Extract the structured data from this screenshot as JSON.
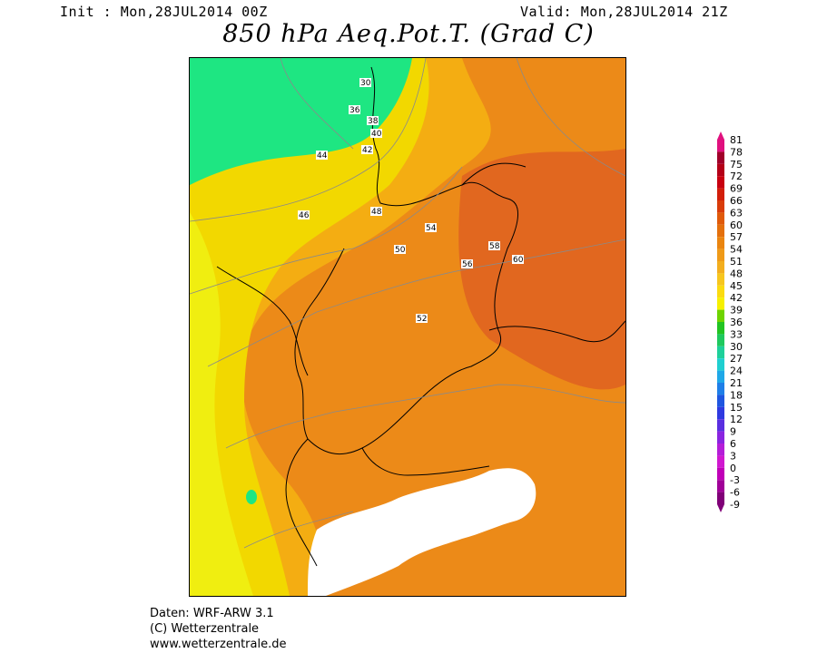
{
  "header": {
    "init": "Init : Mon,28JUL2014 00Z",
    "valid": "Valid: Mon,28JUL2014 21Z",
    "title": "850 hPa Aeq.Pot.T. (Grad C)"
  },
  "legend": {
    "ticks": [
      "81",
      "78",
      "75",
      "72",
      "69",
      "66",
      "63",
      "60",
      "57",
      "54",
      "51",
      "48",
      "45",
      "42",
      "39",
      "36",
      "33",
      "30",
      "27",
      "24",
      "21",
      "18",
      "15",
      "12",
      "9",
      "6",
      "3",
      "0",
      "-3",
      "-6",
      "-9"
    ],
    "colors": [
      "#e0107e",
      "#a0002a",
      "#b40018",
      "#c80010",
      "#d21e0a",
      "#d93c0a",
      "#e05a0a",
      "#e4700c",
      "#ea8510",
      "#ef9a18",
      "#f3ae1e",
      "#f7c61e",
      "#fbdb10",
      "#f6f000",
      "#6ed400",
      "#22c422",
      "#1fc95e",
      "#1ed09a",
      "#1fcfd0",
      "#1fa8e8",
      "#1f7fe8",
      "#1f56e0",
      "#2f3ae0",
      "#5a2fe0",
      "#8a25e0",
      "#b41ed8",
      "#d018d0",
      "#c000b8",
      "#a00098",
      "#800078"
    ]
  },
  "contour_labels": [
    {
      "v": "30"
    },
    {
      "v": "36"
    },
    {
      "v": "38"
    },
    {
      "v": "40"
    },
    {
      "v": "42"
    },
    {
      "v": "44"
    },
    {
      "v": "46"
    },
    {
      "v": "48"
    },
    {
      "v": "50"
    },
    {
      "v": "52"
    },
    {
      "v": "54"
    },
    {
      "v": "56"
    },
    {
      "v": "58"
    },
    {
      "v": "60"
    }
  ],
  "footer": {
    "line1": "Daten: WRF-ARW 3.1",
    "line2": "(C) Wetterzentrale",
    "line3": "www.wetterzentrale.de"
  },
  "colors": {
    "green": "#1ee682",
    "yellow": "#f5e600",
    "light_orange": "#f5b400",
    "orange": "#eb8a14",
    "dark_orange": "#e0641e",
    "white_mask": "#ffffff"
  }
}
